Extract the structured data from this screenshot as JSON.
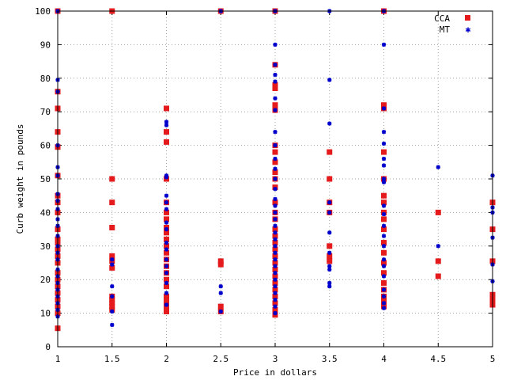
{
  "chart_data": {
    "type": "scatter",
    "title": "",
    "xlabel": "Price in dollars",
    "ylabel": "Curb weight in pounds",
    "xlim": [
      1,
      5
    ],
    "ylim": [
      0,
      100
    ],
    "x_ticks": [
      "1",
      "1.5",
      "2",
      "2.5",
      "3",
      "3.5",
      "4",
      "4.5",
      "5"
    ],
    "y_ticks": [
      "0",
      "10",
      "20",
      "30",
      "40",
      "50",
      "60",
      "70",
      "80",
      "90",
      "100"
    ],
    "grid": true,
    "legend_position": "top-right",
    "series": [
      {
        "name": "CCA",
        "color": "#e41a1c",
        "marker": "square",
        "points": [
          [
            1,
            5.5
          ],
          [
            1,
            10
          ],
          [
            1,
            12
          ],
          [
            1,
            14
          ],
          [
            1,
            16
          ],
          [
            1,
            18
          ],
          [
            1,
            20
          ],
          [
            1,
            22
          ],
          [
            1,
            25
          ],
          [
            1,
            27
          ],
          [
            1,
            29
          ],
          [
            1,
            31
          ],
          [
            1,
            32
          ],
          [
            1,
            35
          ],
          [
            1,
            40
          ],
          [
            1,
            43
          ],
          [
            1,
            45
          ],
          [
            1,
            51
          ],
          [
            1,
            59.5
          ],
          [
            1,
            64
          ],
          [
            1,
            71
          ],
          [
            1,
            76
          ],
          [
            1,
            100
          ],
          [
            1.5,
            11
          ],
          [
            1.5,
            12
          ],
          [
            1.5,
            13
          ],
          [
            1.5,
            14
          ],
          [
            1.5,
            15
          ],
          [
            1.5,
            23.5
          ],
          [
            1.5,
            25.5
          ],
          [
            1.5,
            27
          ],
          [
            1.5,
            35.5
          ],
          [
            1.5,
            43
          ],
          [
            1.5,
            50
          ],
          [
            1.5,
            100
          ],
          [
            2,
            10.5
          ],
          [
            2,
            12
          ],
          [
            2,
            13.5
          ],
          [
            2,
            15
          ],
          [
            2,
            18
          ],
          [
            2,
            20
          ],
          [
            2,
            22
          ],
          [
            2,
            24
          ],
          [
            2,
            26
          ],
          [
            2,
            28
          ],
          [
            2,
            30
          ],
          [
            2,
            32
          ],
          [
            2,
            34
          ],
          [
            2,
            35.5
          ],
          [
            2,
            38
          ],
          [
            2,
            40
          ],
          [
            2,
            43
          ],
          [
            2,
            50
          ],
          [
            2,
            61
          ],
          [
            2,
            64
          ],
          [
            2,
            71
          ],
          [
            2.5,
            10.5
          ],
          [
            2.5,
            12
          ],
          [
            2.5,
            24.5
          ],
          [
            2.5,
            25.5
          ],
          [
            2.5,
            100
          ],
          [
            3,
            9.5
          ],
          [
            3,
            11
          ],
          [
            3,
            13
          ],
          [
            3,
            15
          ],
          [
            3,
            17
          ],
          [
            3,
            19
          ],
          [
            3,
            21
          ],
          [
            3,
            23
          ],
          [
            3,
            25
          ],
          [
            3,
            27
          ],
          [
            3,
            29
          ],
          [
            3,
            31
          ],
          [
            3,
            33
          ],
          [
            3,
            35
          ],
          [
            3,
            38
          ],
          [
            3,
            40
          ],
          [
            3,
            43
          ],
          [
            3,
            47.5
          ],
          [
            3,
            50
          ],
          [
            3,
            52
          ],
          [
            3,
            55
          ],
          [
            3,
            58
          ],
          [
            3,
            60
          ],
          [
            3,
            70.5
          ],
          [
            3,
            72
          ],
          [
            3,
            77
          ],
          [
            3,
            78
          ],
          [
            3,
            84
          ],
          [
            3,
            100
          ],
          [
            3.5,
            25.5
          ],
          [
            3.5,
            27
          ],
          [
            3.5,
            30
          ],
          [
            3.5,
            40
          ],
          [
            3.5,
            43
          ],
          [
            3.5,
            50
          ],
          [
            3.5,
            58
          ],
          [
            4,
            12
          ],
          [
            4,
            13.5
          ],
          [
            4,
            15
          ],
          [
            4,
            17
          ],
          [
            4,
            19
          ],
          [
            4,
            22
          ],
          [
            4,
            25
          ],
          [
            4,
            28
          ],
          [
            4,
            31
          ],
          [
            4,
            35
          ],
          [
            4,
            38
          ],
          [
            4,
            40
          ],
          [
            4,
            43
          ],
          [
            4,
            45
          ],
          [
            4,
            50
          ],
          [
            4,
            58
          ],
          [
            4,
            71
          ],
          [
            4,
            72
          ],
          [
            4,
            100
          ],
          [
            4.5,
            21
          ],
          [
            4.5,
            25.5
          ],
          [
            4.5,
            40
          ],
          [
            5,
            12.5
          ],
          [
            5,
            14
          ],
          [
            5,
            15.5
          ],
          [
            5,
            25.5
          ],
          [
            5,
            35
          ],
          [
            5,
            43
          ]
        ]
      },
      {
        "name": "MT",
        "color": "#0000cc",
        "marker": "star",
        "points": [
          [
            1,
            9
          ],
          [
            1,
            11
          ],
          [
            1,
            13
          ],
          [
            1,
            15
          ],
          [
            1,
            17
          ],
          [
            1,
            19
          ],
          [
            1,
            21
          ],
          [
            1,
            23
          ],
          [
            1,
            26
          ],
          [
            1,
            28
          ],
          [
            1,
            30
          ],
          [
            1,
            33
          ],
          [
            1,
            36
          ],
          [
            1,
            38
          ],
          [
            1,
            41
          ],
          [
            1,
            43.5
          ],
          [
            1,
            45.5
          ],
          [
            1,
            51
          ],
          [
            1,
            53.5
          ],
          [
            1,
            60
          ],
          [
            1,
            76
          ],
          [
            1,
            79.5
          ],
          [
            1,
            100
          ],
          [
            1.5,
            6.5
          ],
          [
            1.5,
            10.5
          ],
          [
            1.5,
            15
          ],
          [
            1.5,
            18
          ],
          [
            1.5,
            24.5
          ],
          [
            1.5,
            26
          ],
          [
            2,
            12.5
          ],
          [
            2,
            16
          ],
          [
            2,
            19
          ],
          [
            2,
            22
          ],
          [
            2,
            24
          ],
          [
            2,
            26
          ],
          [
            2,
            29
          ],
          [
            2,
            31
          ],
          [
            2,
            35
          ],
          [
            2,
            37
          ],
          [
            2,
            41
          ],
          [
            2,
            43
          ],
          [
            2,
            45
          ],
          [
            2,
            50.5
          ],
          [
            2,
            51
          ],
          [
            2,
            66
          ],
          [
            2,
            67
          ],
          [
            2.5,
            10.5
          ],
          [
            2.5,
            16
          ],
          [
            2.5,
            18
          ],
          [
            2.5,
            100
          ],
          [
            3,
            10
          ],
          [
            3,
            12
          ],
          [
            3,
            14
          ],
          [
            3,
            16
          ],
          [
            3,
            18
          ],
          [
            3,
            20
          ],
          [
            3,
            22
          ],
          [
            3,
            24
          ],
          [
            3,
            26
          ],
          [
            3,
            28
          ],
          [
            3,
            30
          ],
          [
            3,
            32
          ],
          [
            3,
            34
          ],
          [
            3,
            36
          ],
          [
            3,
            38
          ],
          [
            3,
            40
          ],
          [
            3,
            42
          ],
          [
            3,
            44
          ],
          [
            3,
            47
          ],
          [
            3,
            50
          ],
          [
            3,
            53
          ],
          [
            3,
            56
          ],
          [
            3,
            60
          ],
          [
            3,
            64
          ],
          [
            3,
            70.5
          ],
          [
            3,
            74
          ],
          [
            3,
            79
          ],
          [
            3,
            81
          ],
          [
            3,
            84
          ],
          [
            3,
            90
          ],
          [
            3,
            100
          ],
          [
            3.5,
            18
          ],
          [
            3.5,
            19
          ],
          [
            3.5,
            23
          ],
          [
            3.5,
            24
          ],
          [
            3.5,
            28
          ],
          [
            3.5,
            34
          ],
          [
            3.5,
            40
          ],
          [
            3.5,
            43
          ],
          [
            3.5,
            66.5
          ],
          [
            3.5,
            79.5
          ],
          [
            3.5,
            100
          ],
          [
            4,
            11.5
          ],
          [
            4,
            13
          ],
          [
            4,
            15
          ],
          [
            4,
            17
          ],
          [
            4,
            21
          ],
          [
            4,
            24
          ],
          [
            4,
            26
          ],
          [
            4,
            30
          ],
          [
            4,
            33
          ],
          [
            4,
            36
          ],
          [
            4,
            39.5
          ],
          [
            4,
            42
          ],
          [
            4,
            49
          ],
          [
            4,
            50
          ],
          [
            4,
            54
          ],
          [
            4,
            56
          ],
          [
            4,
            60.5
          ],
          [
            4,
            64
          ],
          [
            4,
            71
          ],
          [
            4,
            90
          ],
          [
            4,
            100
          ],
          [
            4.5,
            30
          ],
          [
            4.5,
            53.5
          ],
          [
            5,
            19.5
          ],
          [
            5,
            24.5
          ],
          [
            5,
            32.5
          ],
          [
            5,
            40
          ],
          [
            5,
            41.5
          ],
          [
            5,
            51
          ]
        ]
      }
    ]
  }
}
